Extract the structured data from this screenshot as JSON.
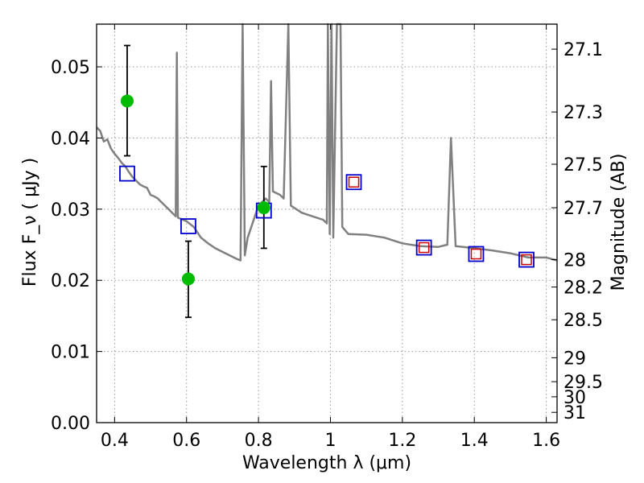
{
  "chart_data": {
    "type": "scatter",
    "xlabel": "Wavelength  λ (μm)",
    "ylabel": "Flux  F_ν  ( μJy )",
    "y2label": "Magnitude (AB)",
    "xlim": [
      0.35,
      1.63
    ],
    "ylim": [
      0.0,
      0.056
    ],
    "grid": true,
    "x_ticks": [
      0.4,
      0.6,
      0.8,
      1.0,
      1.2,
      1.4,
      1.6
    ],
    "x_tick_labels": [
      "0.4",
      "0.6",
      "0.8",
      "1",
      "1.2",
      "1.4",
      "1.6"
    ],
    "y_ticks": [
      0.0,
      0.01,
      0.02,
      0.03,
      0.04,
      0.05
    ],
    "y_tick_labels": [
      "0.00",
      "0.01",
      "0.02",
      "0.03",
      "0.04",
      "0.05"
    ],
    "y2_ticks": [
      {
        "label": "27.1",
        "mag": 27.1
      },
      {
        "label": "27.3",
        "mag": 27.3
      },
      {
        "label": "27.5",
        "mag": 27.5
      },
      {
        "label": "27.7",
        "mag": 27.7
      },
      {
        "label": "28",
        "mag": 28.0
      },
      {
        "label": "28.2",
        "mag": 28.2
      },
      {
        "label": "28.5",
        "mag": 28.5
      },
      {
        "label": "29",
        "mag": 29.0
      },
      {
        "label": "29.5",
        "mag": 29.5
      },
      {
        "label": "30",
        "mag": 30.0
      },
      {
        "label": "31",
        "mag": 31.0
      }
    ],
    "colors": {
      "model": "#808080",
      "observed": "#00bb00",
      "model_photometry": "#0000cc",
      "upper_points": "#cc0000",
      "grid": "#999999"
    },
    "series": [
      {
        "kind": "line",
        "points": [
          [
            0.35,
            0.0415
          ],
          [
            0.36,
            0.041
          ],
          [
            0.37,
            0.0395
          ],
          [
            0.38,
            0.0398
          ],
          [
            0.39,
            0.0385
          ],
          [
            0.4,
            0.0378
          ],
          [
            0.41,
            0.0372
          ],
          [
            0.42,
            0.0365
          ],
          [
            0.43,
            0.036
          ],
          [
            0.44,
            0.0352
          ],
          [
            0.45,
            0.0345
          ],
          [
            0.46,
            0.034
          ],
          [
            0.47,
            0.0335
          ],
          [
            0.48,
            0.0332
          ],
          [
            0.49,
            0.033
          ],
          [
            0.5,
            0.032
          ],
          [
            0.51,
            0.0318
          ],
          [
            0.52,
            0.0315
          ],
          [
            0.53,
            0.031
          ],
          [
            0.54,
            0.0305
          ],
          [
            0.55,
            0.03
          ],
          [
            0.56,
            0.0295
          ],
          [
            0.57,
            0.029
          ],
          [
            0.573,
            0.052
          ],
          [
            0.576,
            0.0288
          ],
          [
            0.6,
            0.0283
          ],
          [
            0.62,
            0.0275
          ],
          [
            0.64,
            0.026
          ],
          [
            0.66,
            0.0252
          ],
          [
            0.68,
            0.0245
          ],
          [
            0.7,
            0.024
          ],
          [
            0.72,
            0.0235
          ],
          [
            0.74,
            0.023
          ],
          [
            0.75,
            0.0228
          ],
          [
            0.756,
            0.056
          ],
          [
            0.762,
            0.0235
          ],
          [
            0.77,
            0.026
          ],
          [
            0.78,
            0.0275
          ],
          [
            0.79,
            0.029
          ],
          [
            0.8,
            0.0305
          ],
          [
            0.81,
            0.031
          ],
          [
            0.82,
            0.0315
          ],
          [
            0.83,
            0.031
          ],
          [
            0.835,
            0.048
          ],
          [
            0.84,
            0.0325
          ],
          [
            0.86,
            0.032
          ],
          [
            0.87,
            0.0315
          ],
          [
            0.883,
            0.056
          ],
          [
            0.89,
            0.0305
          ],
          [
            0.92,
            0.0295
          ],
          [
            0.95,
            0.029
          ],
          [
            0.98,
            0.0285
          ],
          [
            0.99,
            0.028
          ],
          [
            0.993,
            0.056
          ],
          [
            0.998,
            0.0265
          ],
          [
            1.003,
            0.056
          ],
          [
            1.008,
            0.026
          ],
          [
            1.018,
            0.056
          ],
          [
            1.028,
            0.056
          ],
          [
            1.033,
            0.0275
          ],
          [
            1.05,
            0.0265
          ],
          [
            1.1,
            0.0264
          ],
          [
            1.15,
            0.026
          ],
          [
            1.2,
            0.0252
          ],
          [
            1.25,
            0.0248
          ],
          [
            1.3,
            0.0247
          ],
          [
            1.325,
            0.025
          ],
          [
            1.335,
            0.04
          ],
          [
            1.348,
            0.0248
          ],
          [
            1.4,
            0.0245
          ],
          [
            1.45,
            0.0242
          ],
          [
            1.5,
            0.0238
          ],
          [
            1.55,
            0.0232
          ],
          [
            1.6,
            0.0232
          ],
          [
            1.63,
            0.0228
          ]
        ]
      },
      {
        "kind": "observed",
        "points": [
          {
            "x": 0.435,
            "y": 0.0452,
            "yerr": [
              0.0375,
              0.053
            ]
          },
          {
            "x": 0.605,
            "y": 0.0202,
            "yerr": [
              0.0148,
              0.0255
            ]
          },
          {
            "x": 0.815,
            "y": 0.0302,
            "yerr": [
              0.0245,
              0.036
            ]
          }
        ]
      },
      {
        "kind": "model_photometry",
        "points": [
          {
            "x": 0.435,
            "y": 0.035
          },
          {
            "x": 0.605,
            "y": 0.0276
          },
          {
            "x": 0.815,
            "y": 0.0298
          },
          {
            "x": 1.065,
            "y": 0.0338
          },
          {
            "x": 1.26,
            "y": 0.0246
          },
          {
            "x": 1.405,
            "y": 0.0237
          },
          {
            "x": 1.545,
            "y": 0.0229
          }
        ]
      },
      {
        "kind": "upper_points",
        "points": [
          {
            "x": 1.065,
            "y": 0.0338
          },
          {
            "x": 1.26,
            "y": 0.0246
          },
          {
            "x": 1.405,
            "y": 0.0237
          },
          {
            "x": 1.545,
            "y": 0.0229
          }
        ]
      }
    ]
  }
}
